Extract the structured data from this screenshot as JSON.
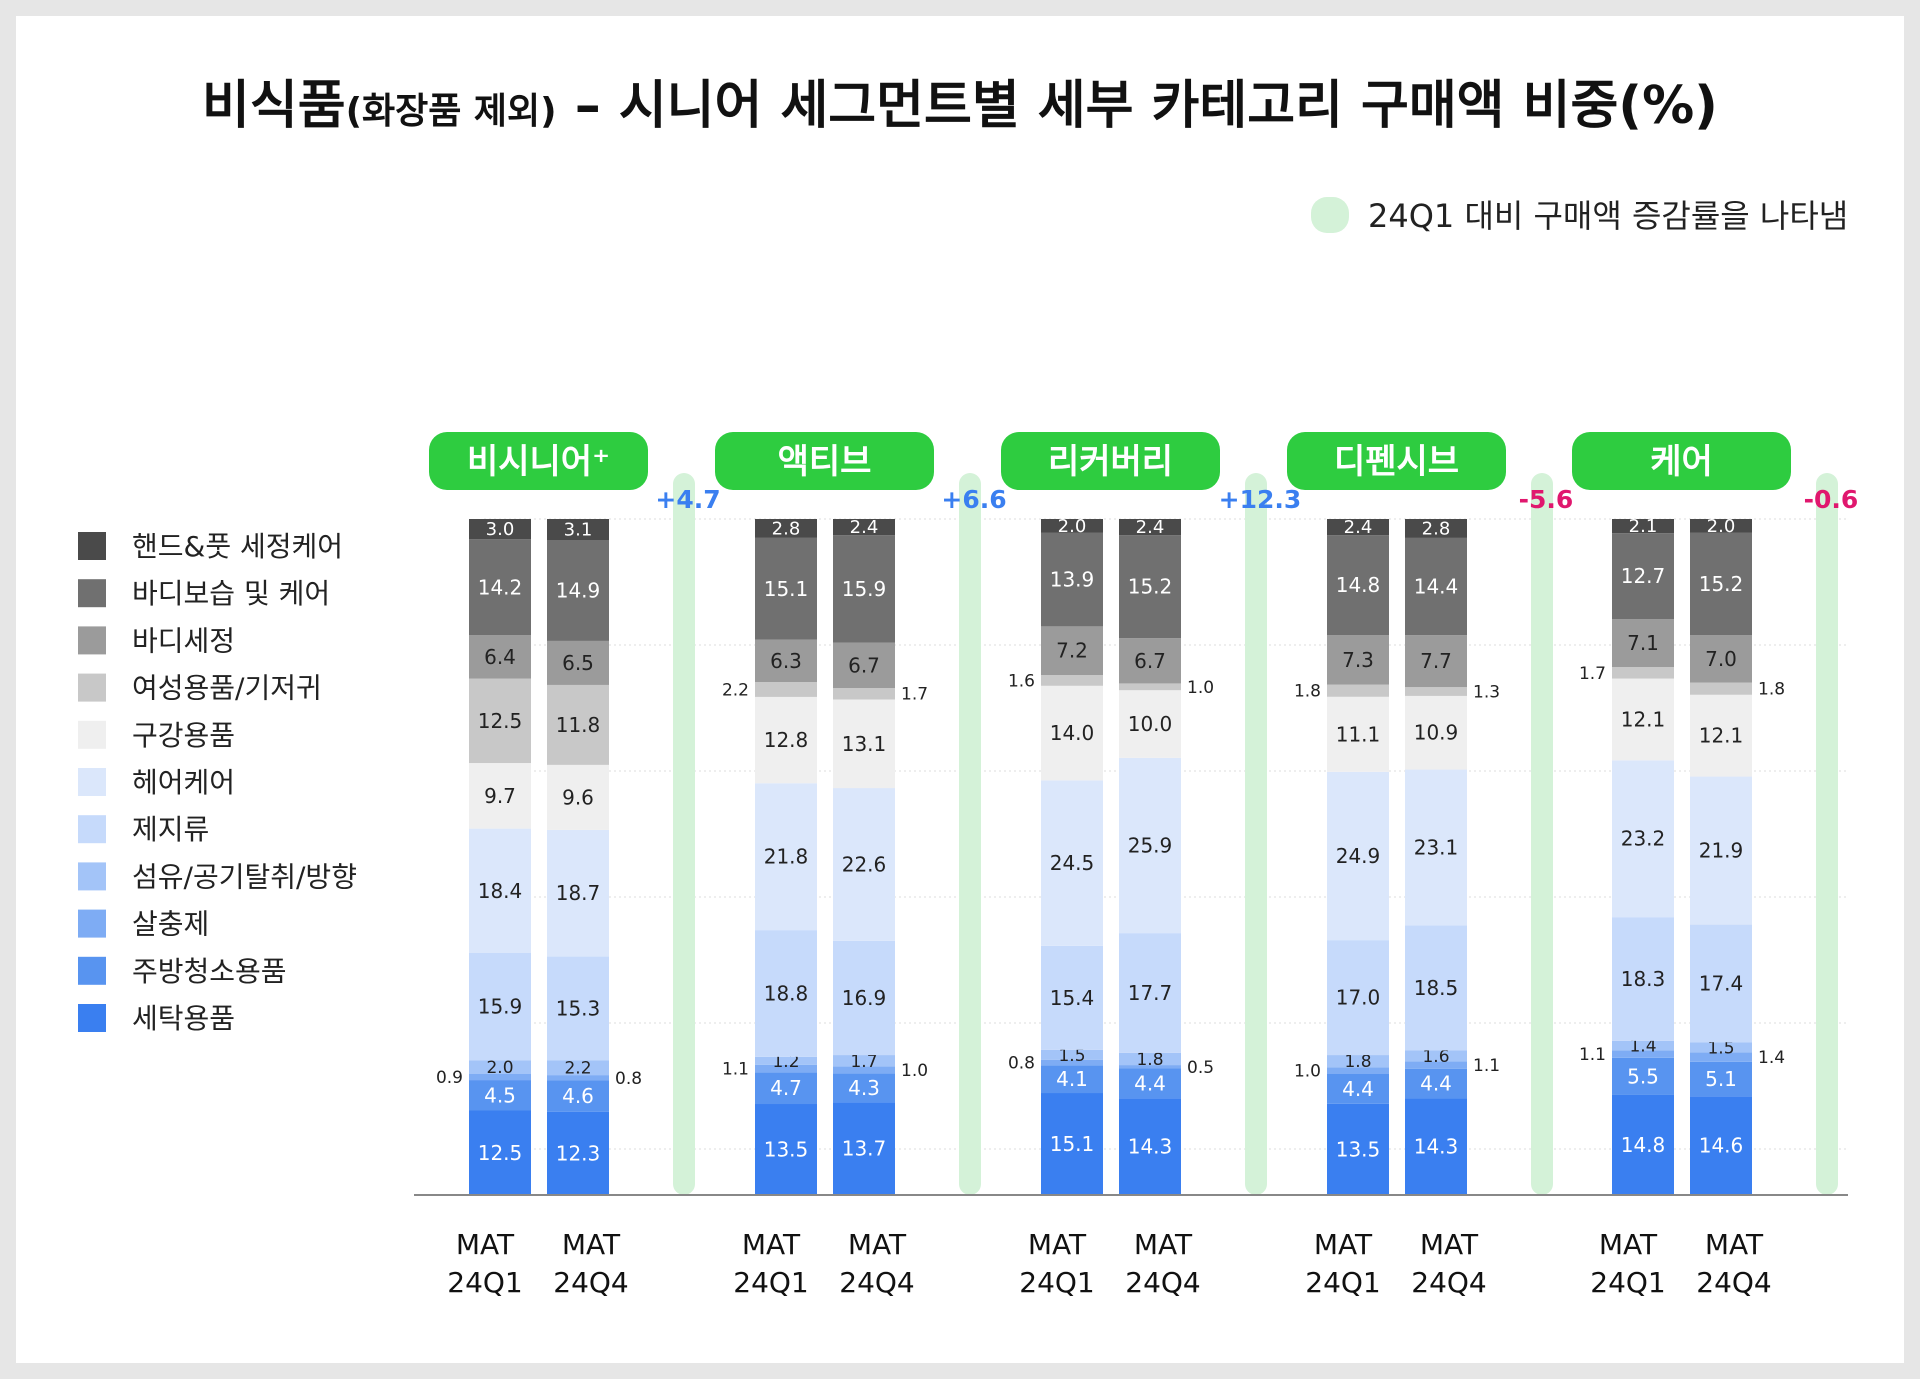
{
  "chart_data": {
    "type": "bar",
    "stacked": true,
    "title_main": "비식품",
    "title_paren": "(화장품 제외)",
    "title_rest": " – 시니어 세그먼트별 세부 카테고리 구매액 비중(%)",
    "note": "24Q1 대비 구매액 증감률을 나타냄",
    "colors": {
      "accent_green": "#2ecc40",
      "growth_bar": "#d4f2d8",
      "positive": "#3a7ff0",
      "negative": "#e0176e"
    },
    "categories_stack_bottom_to_top": [
      "세탁용품",
      "주방청소용품",
      "살충제",
      "섬유/공기탈취/방향",
      "제지류",
      "헤어케어",
      "구강용품",
      "여성용품/기저귀",
      "바디세정",
      "바디보습 및 케어",
      "핸드&풋 세정케어"
    ],
    "legend": [
      {
        "label": "핸드&풋 세정케어",
        "color": "#4a4a4a"
      },
      {
        "label": "바디보습 및 케어",
        "color": "#707070"
      },
      {
        "label": "바디세정",
        "color": "#9b9b9b"
      },
      {
        "label": "여성용품/기저귀",
        "color": "#c8c8c8"
      },
      {
        "label": "구강용품",
        "color": "#efefef"
      },
      {
        "label": "헤어케어",
        "color": "#dbe7fb"
      },
      {
        "label": "제지류",
        "color": "#c6dafb"
      },
      {
        "label": "섬유/공기탈취/방향",
        "color": "#a3c4f8"
      },
      {
        "label": "살충제",
        "color": "#7eacf4"
      },
      {
        "label": "주방청소용품",
        "color": "#5894f0"
      },
      {
        "label": "세탁용품",
        "color": "#3a7ff0"
      }
    ],
    "x_tick_labels": [
      [
        "MAT",
        "24Q1"
      ],
      [
        "MAT",
        "24Q4"
      ]
    ],
    "groups": [
      {
        "name": "비시니어⁺",
        "change": "+4.7",
        "change_value": 4.7,
        "bars": [
          {
            "label": "MAT 24Q1",
            "values": [
              12.5,
              4.5,
              0.9,
              2.0,
              15.9,
              18.4,
              9.7,
              12.5,
              6.4,
              14.2,
              3.0
            ]
          },
          {
            "label": "MAT 24Q4",
            "values": [
              12.3,
              4.6,
              0.8,
              2.2,
              15.3,
              18.7,
              9.6,
              11.8,
              6.5,
              14.9,
              3.1
            ]
          }
        ]
      },
      {
        "name": "액티브",
        "change": "+6.6",
        "change_value": 6.6,
        "bars": [
          {
            "label": "MAT 24Q1",
            "values": [
              13.5,
              4.7,
              1.1,
              1.2,
              18.8,
              21.8,
              12.8,
              2.2,
              6.3,
              15.1,
              2.8
            ]
          },
          {
            "label": "MAT 24Q4",
            "values": [
              13.7,
              4.3,
              1.0,
              1.7,
              16.9,
              22.6,
              13.1,
              1.7,
              6.7,
              15.9,
              2.4
            ]
          }
        ]
      },
      {
        "name": "리커버리",
        "change": "+12.3",
        "change_value": 12.3,
        "bars": [
          {
            "label": "MAT 24Q1",
            "values": [
              15.1,
              4.1,
              0.8,
              1.5,
              15.4,
              24.5,
              14.0,
              1.6,
              7.2,
              13.9,
              2.0
            ]
          },
          {
            "label": "MAT 24Q4",
            "values": [
              14.3,
              4.4,
              0.5,
              1.8,
              17.7,
              25.9,
              10.0,
              1.0,
              6.7,
              15.2,
              2.4
            ]
          }
        ]
      },
      {
        "name": "디펜시브",
        "change": "-5.6",
        "change_value": -5.6,
        "bars": [
          {
            "label": "MAT 24Q1",
            "values": [
              13.5,
              4.4,
              1.0,
              1.8,
              17.0,
              24.9,
              11.1,
              1.8,
              7.3,
              14.8,
              2.4
            ]
          },
          {
            "label": "MAT 24Q4",
            "values": [
              14.3,
              4.4,
              1.1,
              1.6,
              18.5,
              23.1,
              10.9,
              1.3,
              7.7,
              14.4,
              2.8
            ]
          }
        ]
      },
      {
        "name": "케어",
        "change": "-0.6",
        "change_value": -0.6,
        "bars": [
          {
            "label": "MAT 24Q1",
            "values": [
              14.8,
              5.5,
              1.1,
              1.4,
              18.3,
              23.2,
              12.1,
              1.7,
              7.1,
              12.7,
              2.1
            ]
          },
          {
            "label": "MAT 24Q4",
            "values": [
              14.6,
              5.1,
              1.4,
              1.5,
              17.4,
              21.9,
              12.1,
              1.8,
              7.0,
              15.2,
              2.0
            ]
          }
        ]
      }
    ]
  }
}
